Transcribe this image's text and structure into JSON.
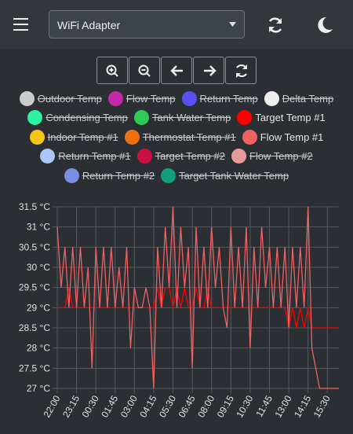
{
  "header": {
    "adapter": "WiFi Adapter"
  },
  "chart_data": {
    "type": "line",
    "x": [
      "22:00",
      "22:15",
      "22:30",
      "22:45",
      "23:00",
      "23:15",
      "23:30",
      "23:45",
      "00:00",
      "00:15",
      "00:30",
      "00:45",
      "01:00",
      "01:15",
      "01:30",
      "01:45",
      "02:00",
      "02:15",
      "02:30",
      "02:45",
      "03:00",
      "03:15",
      "03:30",
      "03:45",
      "04:00",
      "04:15",
      "04:30",
      "04:45",
      "05:00",
      "05:15",
      "05:30",
      "05:45",
      "06:00",
      "06:15",
      "06:30",
      "06:45",
      "07:00",
      "07:15",
      "07:30",
      "07:45",
      "08:00",
      "08:15",
      "08:30",
      "08:45",
      "09:00",
      "09:15",
      "09:30",
      "09:45",
      "10:00",
      "10:15",
      "10:30",
      "10:45",
      "11:00",
      "11:15",
      "11:30",
      "11:45",
      "12:00",
      "12:15",
      "12:30",
      "12:45",
      "13:00",
      "13:15",
      "13:30",
      "13:45",
      "14:00",
      "14:15",
      "14:30",
      "14:45",
      "15:00",
      "15:15",
      "15:30",
      "15:45",
      "16:00",
      "16:15"
    ],
    "series": [
      {
        "name": "Outdoor Temp",
        "color": "#cccccc",
        "hidden": true
      },
      {
        "name": "Flow Temp",
        "color": "#c22aa8",
        "hidden": true
      },
      {
        "name": "Return Temp",
        "color": "#5a4ff0",
        "hidden": true
      },
      {
        "name": "Delta Temp",
        "color": "#eeeeee",
        "hidden": true
      },
      {
        "name": "Condensing Temp",
        "color": "#2ef2a2",
        "hidden": true
      },
      {
        "name": "Tank Water Temp",
        "color": "#2ecc55",
        "hidden": true
      },
      {
        "name": "Target Temp #1",
        "color": "#ff0000",
        "hidden": false,
        "values": [
          29,
          29,
          29,
          29.5,
          29,
          29,
          29,
          29,
          29,
          29,
          29,
          29,
          29,
          29,
          29,
          29,
          29,
          29,
          29,
          29,
          29,
          29,
          29,
          29,
          29,
          29,
          29.5,
          29,
          29.5,
          29.5,
          29,
          29.5,
          29,
          29.5,
          29,
          29,
          29.5,
          29,
          29,
          29.5,
          29,
          29,
          29,
          29,
          29,
          29,
          29,
          29,
          29,
          29,
          29,
          29,
          29,
          29,
          29,
          29,
          29,
          29,
          29,
          29,
          28.5,
          29,
          28.5,
          29,
          28.5,
          29,
          28.5,
          28.5,
          28.5,
          28.5,
          28.5,
          28.5,
          28.5,
          28.5
        ]
      },
      {
        "name": "Indoor Temp #1",
        "color": "#f5c518",
        "hidden": true
      },
      {
        "name": "Thermostat Temp #1",
        "color": "#f07010",
        "hidden": true
      },
      {
        "name": "Flow Temp #1",
        "color": "#f06262",
        "hidden": false,
        "values": [
          31,
          29.5,
          30.5,
          29,
          30.5,
          29,
          30.5,
          29,
          30,
          27.5,
          30.5,
          29,
          30.5,
          29,
          30.5,
          29,
          30,
          29,
          30.5,
          28,
          29.5,
          29,
          29,
          29.5,
          29,
          27,
          30.5,
          29,
          31,
          29.5,
          31.5,
          29,
          31,
          29.5,
          30.5,
          27.5,
          31,
          29,
          30.5,
          29,
          31,
          29.5,
          30.5,
          29,
          28.5,
          31,
          29,
          30.5,
          29,
          31,
          28,
          30.5,
          29,
          31,
          29.5,
          30.5,
          29,
          30.5,
          29,
          30.5,
          28.5,
          30.5,
          29,
          30.5,
          29,
          31.5,
          28,
          27.5,
          27,
          27,
          27,
          27,
          27,
          27
        ]
      },
      {
        "name": "Return Temp #1",
        "color": "#a9c8f8",
        "hidden": true
      },
      {
        "name": "Target Temp #2",
        "color": "#cc1044",
        "hidden": true
      },
      {
        "name": "Flow Temp #2",
        "color": "#e89a9a",
        "hidden": true
      },
      {
        "name": "Return Temp #2",
        "color": "#7a8fe0",
        "hidden": true
      },
      {
        "name": "Target Tank Water Temp",
        "color": "#10a07e",
        "hidden": true
      }
    ],
    "xlim": [
      "22:00",
      "16:15"
    ],
    "xticks": [
      "22:00",
      "23:15",
      "00:30",
      "01:45",
      "03:00",
      "04:15",
      "05:30",
      "06:45",
      "08:00",
      "09:15",
      "10:30",
      "11:45",
      "13:00",
      "14:15",
      "15:30"
    ],
    "ylim": [
      27,
      31.5
    ],
    "yticks": [
      {
        "value": 27,
        "label": "27 °C"
      },
      {
        "value": 27.5,
        "label": "27.5 °C"
      },
      {
        "value": 28,
        "label": "28 °C"
      },
      {
        "value": 28.5,
        "label": "28.5 °C"
      },
      {
        "value": 29,
        "label": "29 °C"
      },
      {
        "value": 29.5,
        "label": "29.5 °C"
      },
      {
        "value": 30,
        "label": "30 °C"
      },
      {
        "value": 30.5,
        "label": "30.5 °C"
      },
      {
        "value": 31,
        "label": "31 °C"
      },
      {
        "value": 31.5,
        "label": "31.5 °C"
      }
    ],
    "grid": true
  }
}
